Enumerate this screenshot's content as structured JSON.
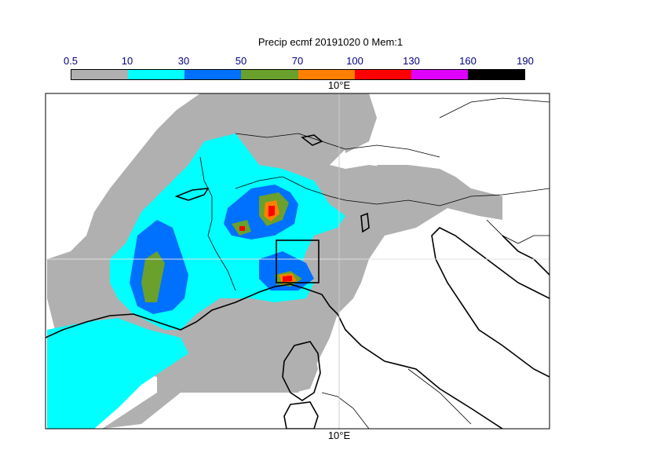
{
  "title": "Precip ecmf 20191020 0 Mem:1",
  "colorbar": {
    "ticks": [
      "0.5",
      "10",
      "30",
      "50",
      "70",
      "100",
      "130",
      "160",
      "190"
    ],
    "colors": [
      "#b0b0b0",
      "#00ffff",
      "#0070ff",
      "#6aa02c",
      "#ff8000",
      "#ff0000",
      "#e000ff",
      "#000000"
    ]
  },
  "map": {
    "lon_label_top": "10°E",
    "lon_label_bottom": "10°E",
    "background": "#ffffff"
  }
}
